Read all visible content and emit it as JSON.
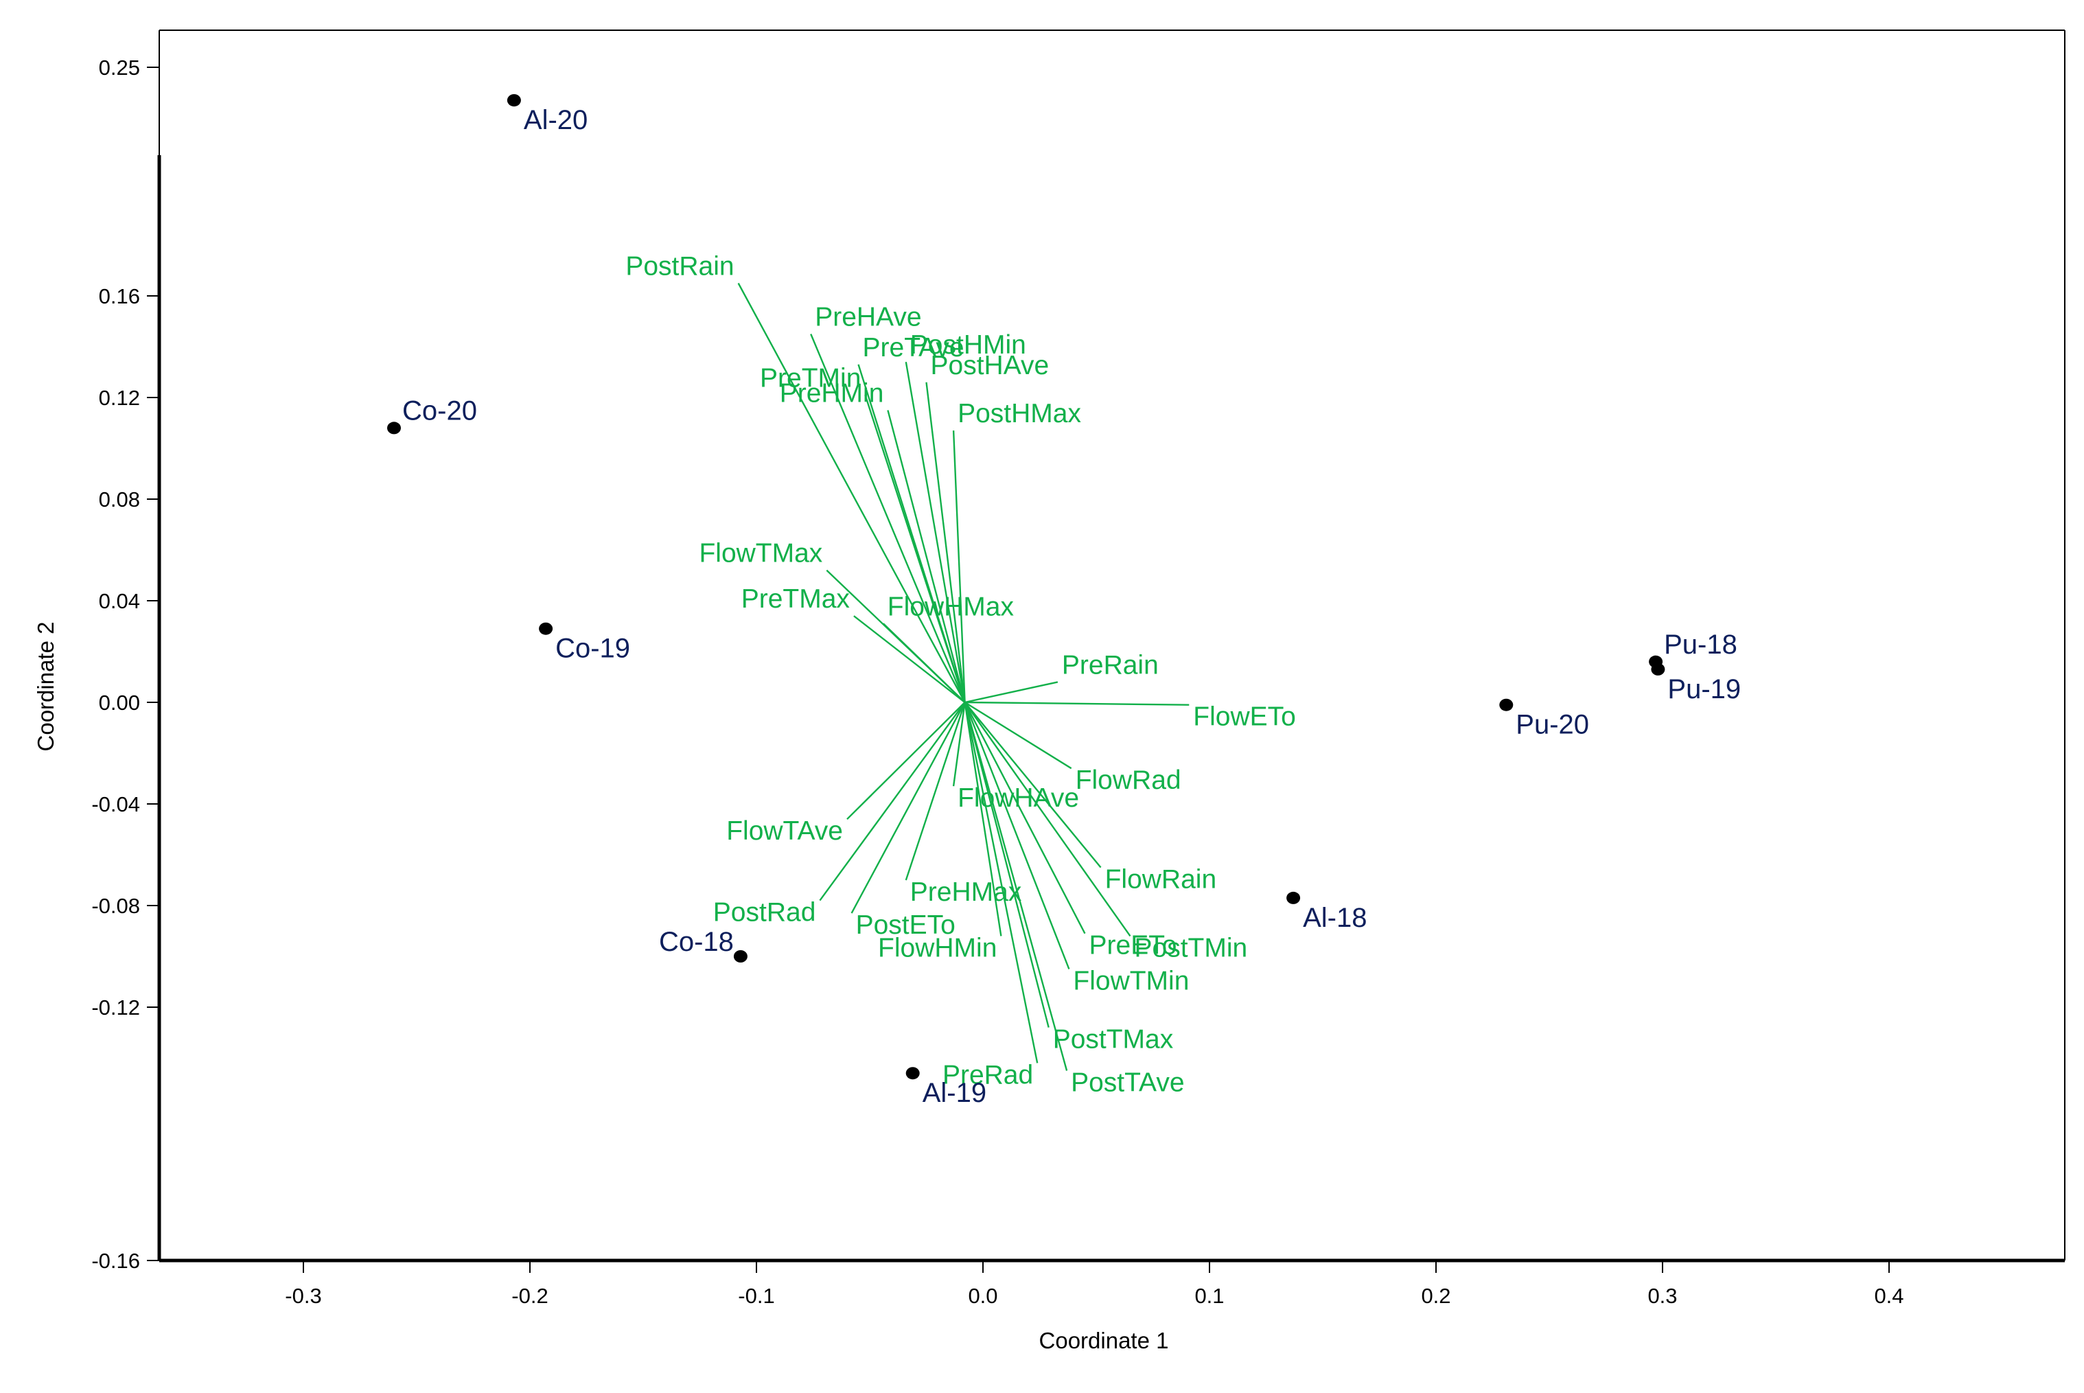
{
  "chart_data": {
    "type": "scatter",
    "subtype": "biplot",
    "title": "",
    "xlabel": "Coordinate 1",
    "ylabel": "Coordinate 2",
    "xlim": [
      -0.37,
      0.48
    ],
    "ylim": [
      -0.16,
      0.255
    ],
    "xticks": [
      -0.3,
      -0.2,
      -0.1,
      0.0,
      0.1,
      0.2,
      0.3,
      0.4
    ],
    "xtick_labels": [
      "-0.3",
      "-0.2",
      "-0.1",
      "0.0",
      "0.1",
      "0.2",
      "0.3",
      "0.4"
    ],
    "yticks": [
      -0.16,
      -0.12,
      -0.08,
      -0.04,
      0.0,
      0.04,
      0.08,
      0.12,
      0.16,
      0.25
    ],
    "ytick_labels": [
      "-0.16",
      "-0.12",
      "-0.08",
      "-0.04",
      "0.00",
      "0.04",
      "0.08",
      "0.12",
      "0.16",
      "0.25"
    ],
    "grid": false,
    "colors": {
      "points": "#000000",
      "point_labels": "#0d1f5c",
      "vectors": "#12b04a",
      "axes": "#000000"
    },
    "vector_origin": [
      -0.008,
      0.0
    ],
    "points": [
      {
        "label": "Al-20",
        "x": -0.207,
        "y": 0.237,
        "label_pos": "below-right"
      },
      {
        "label": "Co-20",
        "x": -0.26,
        "y": 0.108,
        "label_pos": "above-right"
      },
      {
        "label": "Co-19",
        "x": -0.193,
        "y": 0.029,
        "label_pos": "below-right"
      },
      {
        "label": "Co-18",
        "x": -0.107,
        "y": -0.1,
        "label_pos": "above-left"
      },
      {
        "label": "Al-19",
        "x": -0.031,
        "y": -0.146,
        "label_pos": "below-right"
      },
      {
        "label": "Al-18",
        "x": 0.137,
        "y": -0.077,
        "label_pos": "below-right"
      },
      {
        "label": "Pu-20",
        "x": 0.231,
        "y": -0.001,
        "label_pos": "below-right"
      },
      {
        "label": "Pu-18",
        "x": 0.297,
        "y": 0.016,
        "label_pos": "above-right"
      },
      {
        "label": "Pu-19",
        "x": 0.298,
        "y": 0.013,
        "label_pos": "below-right"
      }
    ],
    "vectors": [
      {
        "label": "PostRain",
        "x": -0.108,
        "y": 0.165,
        "anchor": "end"
      },
      {
        "label": "PreHAve",
        "x": -0.076,
        "y": 0.145,
        "anchor": "start"
      },
      {
        "label": "PreTAve",
        "x": -0.055,
        "y": 0.133,
        "anchor": "start"
      },
      {
        "label": "PostHMin",
        "x": -0.034,
        "y": 0.134,
        "anchor": "start"
      },
      {
        "label": "PreTMin",
        "x": -0.052,
        "y": 0.121,
        "anchor": "end"
      },
      {
        "label": "PostHAve",
        "x": -0.025,
        "y": 0.126,
        "anchor": "start"
      },
      {
        "label": "PreHMin",
        "x": -0.042,
        "y": 0.115,
        "anchor": "end"
      },
      {
        "label": "PostHMax",
        "x": -0.013,
        "y": 0.107,
        "anchor": "start"
      },
      {
        "label": "FlowTMax",
        "x": -0.069,
        "y": 0.052,
        "anchor": "end"
      },
      {
        "label": "PreTMax",
        "x": -0.057,
        "y": 0.034,
        "anchor": "end"
      },
      {
        "label": "FlowHMax",
        "x": -0.044,
        "y": 0.031,
        "anchor": "start"
      },
      {
        "label": "PreRain",
        "x": 0.033,
        "y": 0.008,
        "anchor": "start"
      },
      {
        "label": "FlowETo",
        "x": 0.091,
        "y": -0.001,
        "anchor": "start"
      },
      {
        "label": "FlowRad",
        "x": 0.039,
        "y": -0.026,
        "anchor": "start"
      },
      {
        "label": "FlowHAve",
        "x": -0.013,
        "y": -0.033,
        "anchor": "start"
      },
      {
        "label": "FlowTAve",
        "x": -0.06,
        "y": -0.046,
        "anchor": "end"
      },
      {
        "label": "FlowRain",
        "x": 0.052,
        "y": -0.065,
        "anchor": "start"
      },
      {
        "label": "PreHMax",
        "x": -0.034,
        "y": -0.07,
        "anchor": "start"
      },
      {
        "label": "PostRad",
        "x": -0.072,
        "y": -0.078,
        "anchor": "end"
      },
      {
        "label": "PostETo",
        "x": -0.058,
        "y": -0.083,
        "anchor": "start"
      },
      {
        "label": "FlowHMin",
        "x": 0.008,
        "y": -0.092,
        "anchor": "end"
      },
      {
        "label": "PreETo",
        "x": 0.045,
        "y": -0.091,
        "anchor": "start"
      },
      {
        "label": "PostTMin",
        "x": 0.065,
        "y": -0.092,
        "anchor": "start"
      },
      {
        "label": "FlowTMin",
        "x": 0.038,
        "y": -0.105,
        "anchor": "start"
      },
      {
        "label": "PostTMax",
        "x": 0.029,
        "y": -0.128,
        "anchor": "start"
      },
      {
        "label": "PreRad",
        "x": 0.024,
        "y": -0.142,
        "anchor": "end"
      },
      {
        "label": "PostTAve",
        "x": 0.037,
        "y": -0.145,
        "anchor": "start"
      }
    ]
  }
}
